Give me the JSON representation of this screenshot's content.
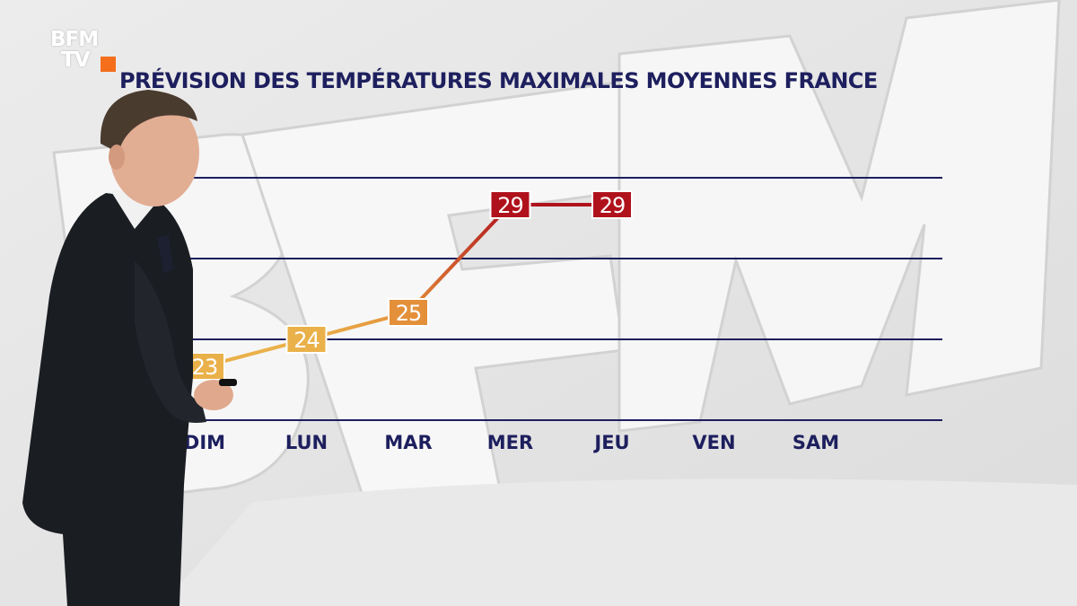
{
  "brand": {
    "line1": "BFM",
    "line2": "TV",
    "accent": "#f46e1c"
  },
  "title": "PRÉVISION DES TEMPÉRATURES MAXIMALES MOYENNES FRANCE",
  "chart_data": {
    "type": "line",
    "title": "PRÉVISION DES TEMPÉRATURES MAXIMALES MOYENNES FRANCE",
    "xlabel": "",
    "ylabel": "",
    "categories": [
      "DIM",
      "LUN",
      "MAR",
      "MER",
      "JEU",
      "VEN",
      "SAM"
    ],
    "series": [
      {
        "values": [
          23,
          24,
          25,
          29,
          29,
          null,
          null
        ],
        "labels": [
          "23",
          "24",
          "25",
          "29",
          "29",
          "",
          ""
        ]
      }
    ],
    "ylim": [
      21,
      33
    ],
    "gridlines": [
      21,
      24,
      27,
      30
    ],
    "grid": true,
    "colors": {
      "grid": "#1d1f5e",
      "axis_labels": "#1d1f5e",
      "low": "#eab14a",
      "mid": "#e4903a",
      "high": "#b0121c",
      "label_text": "#ffffff"
    }
  }
}
